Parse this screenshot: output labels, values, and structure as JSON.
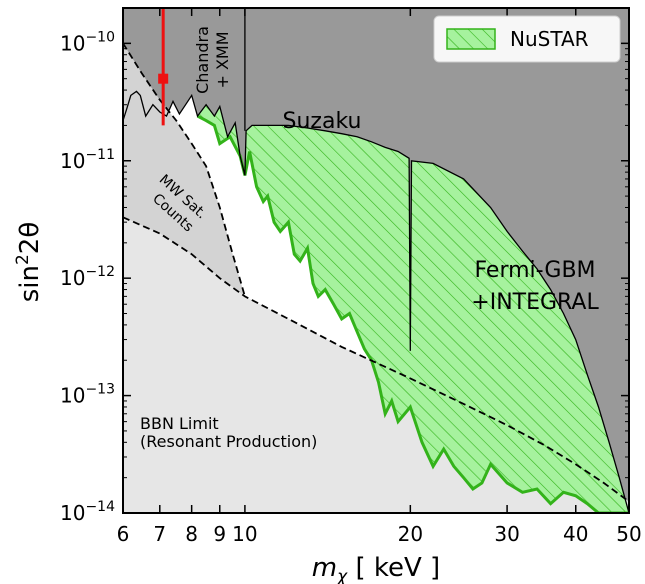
{
  "chart_data": {
    "type": "area",
    "xlabel_main": "m",
    "xlabel_sub": "χ",
    "xlabel_unit": " [ keV ]",
    "ylabel_main": "sin",
    "ylabel_sup": "2",
    "ylabel_tail": "2θ",
    "x_scale": "log",
    "y_scale": "log",
    "xlim": [
      6,
      50
    ],
    "ylim": [
      1e-14,
      2e-10
    ],
    "x_ticks": [
      {
        "value": 6,
        "label": "6"
      },
      {
        "value": 7,
        "label": "7"
      },
      {
        "value": 8,
        "label": "8"
      },
      {
        "value": 9,
        "label": "9"
      },
      {
        "value": 10,
        "label": "10"
      },
      {
        "value": 20,
        "label": "20"
      },
      {
        "value": 30,
        "label": "30"
      },
      {
        "value": 40,
        "label": "40"
      },
      {
        "value": 50,
        "label": "50"
      }
    ],
    "y_ticks": [
      {
        "value": 1e-10,
        "mant": "10",
        "exp": "−10"
      },
      {
        "value": 1e-11,
        "mant": "10",
        "exp": "−11"
      },
      {
        "value": 1e-12,
        "mant": "10",
        "exp": "−12"
      },
      {
        "value": 1e-13,
        "mant": "10",
        "exp": "−13"
      },
      {
        "value": 1e-14,
        "mant": "10",
        "exp": "−14"
      }
    ],
    "legend": {
      "label": "NuSTAR",
      "placement": "top-right"
    },
    "colors": {
      "dark_excluded": "#999999",
      "mw_region": "#d3d3d3",
      "bbn_region": "#e6e6e6",
      "nustar_fill": "#a6f29e",
      "nustar_edge": "#33b31a",
      "signal": "#ee1111"
    },
    "annotations": {
      "chandra": "Chandra",
      "xmm": "+ XMM",
      "suzaku": "Suzaku",
      "fermi": "Fermi-GBM",
      "integral": "+INTEGRAL",
      "mw_line1": "MW Sat.",
      "mw_line2": "Counts",
      "bbn_line1": "BBN Limit",
      "bbn_line2": "(Resonant Production)"
    },
    "signal_point": {
      "x": 7.1,
      "y": 5e-11,
      "y_err": [
        2e-11,
        2e-10
      ]
    },
    "series": [
      {
        "id": "dark_boundary",
        "points": [
          [
            6,
            2.2e-11
          ],
          [
            6.1,
            2.8e-11
          ],
          [
            6.2,
            3.6e-11
          ],
          [
            6.35,
            3.9e-11
          ],
          [
            6.45,
            3.6e-11
          ],
          [
            6.6,
            2.4e-11
          ],
          [
            6.8,
            3e-11
          ],
          [
            7.0,
            2.6e-11
          ],
          [
            7.2,
            2.4e-11
          ],
          [
            7.4,
            3.2e-11
          ],
          [
            7.6,
            2.5e-11
          ],
          [
            7.8,
            3e-11
          ],
          [
            8.0,
            3.6e-11
          ],
          [
            8.2,
            2.4e-11
          ],
          [
            8.5,
            3e-11
          ],
          [
            8.8,
            2.4e-11
          ],
          [
            9.0,
            2.9e-11
          ],
          [
            9.3,
            1.6e-11
          ],
          [
            9.6,
            2.1e-11
          ],
          [
            9.8,
            1.1e-11
          ],
          [
            10.0,
            7.5e-12
          ],
          [
            10.05,
            1.8e-11
          ],
          [
            10.3,
            2e-11
          ],
          [
            11,
            2e-11
          ],
          [
            12,
            2e-11
          ],
          [
            13,
            1.9e-11
          ],
          [
            14,
            1.8e-11
          ],
          [
            15,
            1.7e-11
          ],
          [
            16,
            1.6e-11
          ],
          [
            17,
            1.45e-11
          ],
          [
            18,
            1.3e-11
          ],
          [
            19,
            1.2e-11
          ],
          [
            19.9,
            1.05e-11
          ],
          [
            20.0,
            2.4e-13
          ],
          [
            20.1,
            1e-11
          ],
          [
            22,
            9.5e-12
          ],
          [
            25,
            7e-12
          ],
          [
            28,
            4e-12
          ],
          [
            30,
            2.5e-12
          ],
          [
            32,
            1.7e-12
          ],
          [
            34,
            1.2e-12
          ],
          [
            36,
            8e-13
          ],
          [
            38,
            5e-13
          ],
          [
            40,
            3e-13
          ],
          [
            42,
            1.5e-13
          ],
          [
            44,
            8e-14
          ],
          [
            46,
            4e-14
          ],
          [
            48,
            2e-14
          ],
          [
            50,
            1e-14
          ]
        ]
      },
      {
        "id": "nustar_lower",
        "points": [
          [
            8.2,
            2.4e-11
          ],
          [
            8.5,
            2.2e-11
          ],
          [
            8.8,
            2e-11
          ],
          [
            9.0,
            1.4e-11
          ],
          [
            9.4,
            1.6e-11
          ],
          [
            9.8,
            1.1e-11
          ],
          [
            10.0,
            7.5e-12
          ],
          [
            10.2,
            1.2e-11
          ],
          [
            10.5,
            6e-12
          ],
          [
            10.8,
            4.5e-12
          ],
          [
            11,
            5e-12
          ],
          [
            11.3,
            3e-12
          ],
          [
            11.6,
            2.5e-12
          ],
          [
            12,
            3e-12
          ],
          [
            12.3,
            1.6e-12
          ],
          [
            12.6,
            1.4e-12
          ],
          [
            13,
            1.8e-12
          ],
          [
            13.3,
            9e-13
          ],
          [
            13.6,
            7e-13
          ],
          [
            14,
            8e-13
          ],
          [
            14.5,
            6e-13
          ],
          [
            15,
            4.5e-13
          ],
          [
            15.5,
            5e-13
          ],
          [
            16,
            3.5e-13
          ],
          [
            16.5,
            2.5e-13
          ],
          [
            17,
            2e-13
          ],
          [
            17.5,
            1.3e-13
          ],
          [
            18,
            7e-14
          ],
          [
            18.5,
            9e-14
          ],
          [
            19,
            6e-14
          ],
          [
            20,
            8e-14
          ],
          [
            21,
            4e-14
          ],
          [
            22,
            2.5e-14
          ],
          [
            23,
            3.5e-14
          ],
          [
            24,
            2.5e-14
          ],
          [
            25,
            2e-14
          ],
          [
            26,
            1.6e-14
          ],
          [
            27,
            1.8e-14
          ],
          [
            28,
            2.6e-14
          ],
          [
            30,
            1.8e-14
          ],
          [
            32,
            1.5e-14
          ],
          [
            34,
            1.6e-14
          ],
          [
            36,
            1.2e-14
          ],
          [
            38,
            1.5e-14
          ],
          [
            40,
            1.4e-14
          ],
          [
            42,
            1.2e-14
          ],
          [
            44,
            1e-14
          ],
          [
            50,
            1e-14
          ]
        ]
      },
      {
        "id": "mw_dashed",
        "points": [
          [
            6,
            1e-10
          ],
          [
            6.5,
            5.5e-11
          ],
          [
            7.0,
            3.3e-11
          ],
          [
            7.5,
            2.2e-11
          ],
          [
            8,
            1.4e-11
          ],
          [
            8.5,
            9e-12
          ],
          [
            9,
            4e-12
          ],
          [
            9.5,
            1.6e-12
          ],
          [
            10,
            7e-13
          ]
        ]
      },
      {
        "id": "bbn_dashed",
        "points": [
          [
            6,
            3.3e-12
          ],
          [
            7,
            2.4e-12
          ],
          [
            8,
            1.6e-12
          ],
          [
            9,
            1e-12
          ],
          [
            10,
            7e-13
          ],
          [
            12,
            4.5e-13
          ],
          [
            15,
            2.6e-13
          ],
          [
            20,
            1.4e-13
          ],
          [
            25,
            8.5e-14
          ],
          [
            30,
            5.6e-14
          ],
          [
            35,
            3.8e-14
          ],
          [
            40,
            2.6e-14
          ],
          [
            45,
            1.8e-14
          ],
          [
            50,
            1.25e-14
          ]
        ]
      }
    ]
  }
}
